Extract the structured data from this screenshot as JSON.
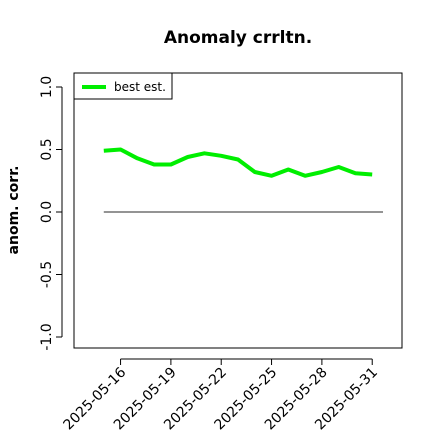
{
  "chart_data": {
    "type": "line",
    "title": "Anomaly crrltn.",
    "xlabel": "",
    "ylabel": "anom. corr.",
    "ylim": [
      -1.0,
      1.0
    ],
    "yticks": [
      "-1.0",
      "-0.5",
      "0.0",
      "0.5",
      "1.0"
    ],
    "xticks": [
      "2025-05-16",
      "2025-05-19",
      "2025-05-22",
      "2025-05-25",
      "2025-05-28",
      "2025-05-31"
    ],
    "x_start_date": "2025-05-15",
    "x_end_date": "2025-05-31",
    "xlim_dates": [
      "2025-05-14",
      "2025-06-01"
    ],
    "grid": false,
    "legend_position": "top-left",
    "series": [
      {
        "name": "best est.",
        "color": "#00ee00",
        "x": [
          "2025-05-15",
          "2025-05-16",
          "2025-05-17",
          "2025-05-18",
          "2025-05-19",
          "2025-05-20",
          "2025-05-21",
          "2025-05-22",
          "2025-05-23",
          "2025-05-24",
          "2025-05-25",
          "2025-05-26",
          "2025-05-27",
          "2025-05-28",
          "2025-05-29",
          "2025-05-30",
          "2025-05-31"
        ],
        "values": [
          0.49,
          0.5,
          0.43,
          0.38,
          0.38,
          0.44,
          0.47,
          0.45,
          0.42,
          0.32,
          0.29,
          0.34,
          0.29,
          0.32,
          0.36,
          0.31,
          0.3
        ]
      }
    ],
    "reference_line": {
      "y": 0.0,
      "color": "#555555"
    }
  }
}
